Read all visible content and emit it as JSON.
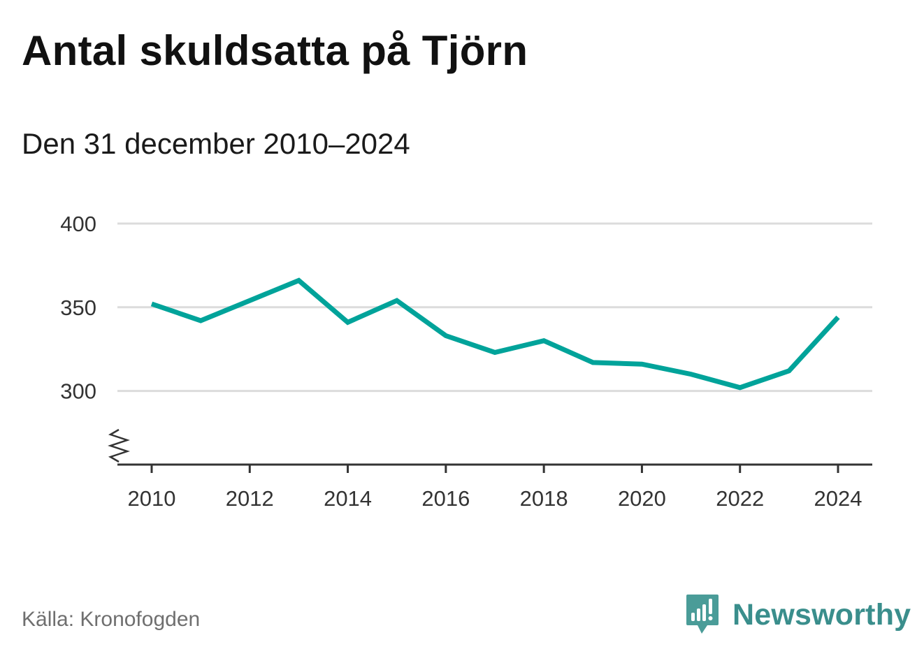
{
  "header": {
    "title": "Antal skuldsatta på Tjörn",
    "subtitle": "Den 31 december 2010–2024"
  },
  "footer": {
    "source": "Källa: Kronofogden",
    "brand": "Newsworthy"
  },
  "colors": {
    "line": "#00a39a",
    "grid": "#dcdcdc",
    "axis": "#333333",
    "brand": "#3a8e8c"
  },
  "chart_data": {
    "type": "line",
    "title": "Antal skuldsatta på Tjörn",
    "subtitle": "Den 31 december 2010–2024",
    "xlabel": "",
    "ylabel": "",
    "x": [
      2010,
      2011,
      2012,
      2013,
      2014,
      2015,
      2016,
      2017,
      2018,
      2019,
      2020,
      2021,
      2022,
      2023,
      2024
    ],
    "series": [
      {
        "name": "Antal skuldsatta",
        "values": [
          352,
          342,
          354,
          366,
          341,
          354,
          333,
          323,
          330,
          317,
          316,
          310,
          302,
          312,
          344
        ]
      }
    ],
    "yticks": [
      300,
      350,
      400
    ],
    "ytick_labels": [
      "300",
      "350",
      "400"
    ],
    "xticks": [
      2010,
      2012,
      2014,
      2016,
      2018,
      2020,
      2022,
      2024
    ],
    "xtick_labels": [
      "2010",
      "2012",
      "2014",
      "2016",
      "2018",
      "2020",
      "2022",
      "2024"
    ],
    "ylim": [
      256,
      400
    ],
    "xlim": [
      2010,
      2024
    ],
    "grid": true,
    "axis_break": true
  }
}
